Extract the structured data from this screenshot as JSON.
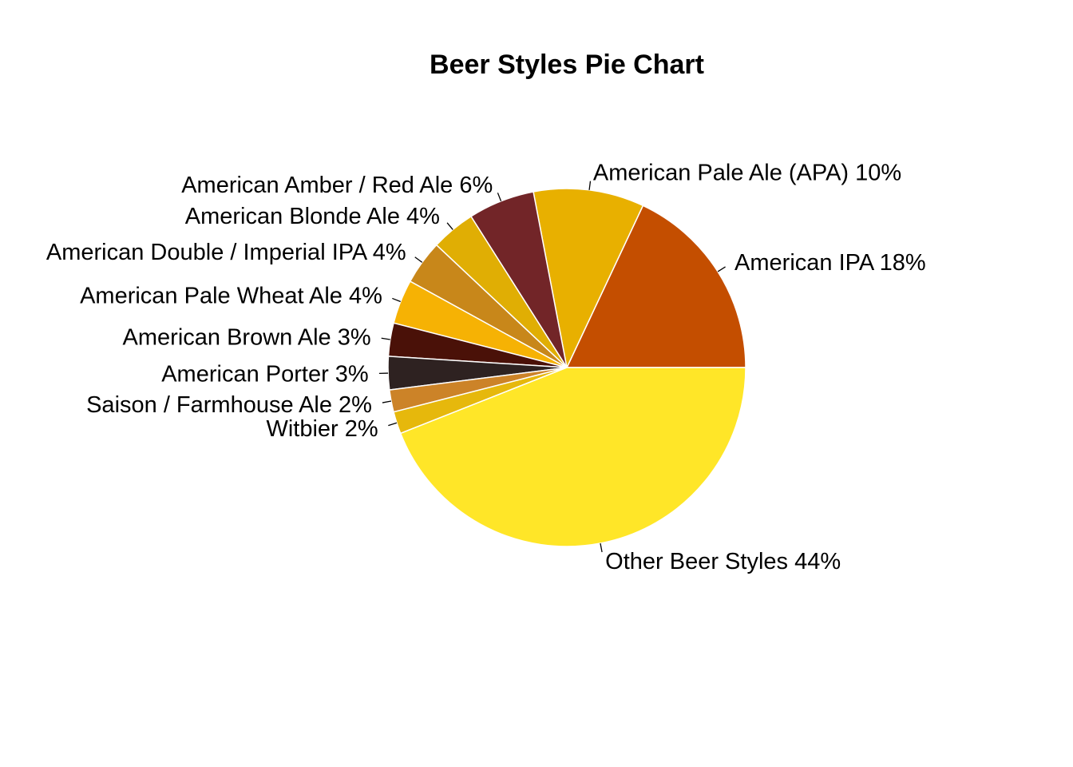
{
  "chart_data": {
    "type": "pie",
    "title": "Beer Styles Pie Chart",
    "slices": [
      {
        "label": "American IPA 18%",
        "value": 18,
        "color": "#C44E00"
      },
      {
        "label": "American Pale Ale (APA) 10%",
        "value": 10,
        "color": "#E8B000"
      },
      {
        "label": "American Amber / Red Ale 6%",
        "value": 6,
        "color": "#722528"
      },
      {
        "label": "American Blonde Ale 4%",
        "value": 4,
        "color": "#E0AE04"
      },
      {
        "label": "American Double / Imperial IPA 4%",
        "value": 4,
        "color": "#C8871A"
      },
      {
        "label": "American Pale Wheat Ale 4%",
        "value": 4,
        "color": "#F6B204"
      },
      {
        "label": "American Brown Ale 3%",
        "value": 3,
        "color": "#4A1108"
      },
      {
        "label": "American Porter 3%",
        "value": 3,
        "color": "#2E2221"
      },
      {
        "label": "Saison / Farmhouse Ale 2%",
        "value": 2,
        "color": "#CC8328"
      },
      {
        "label": "Witbier 2%",
        "value": 2,
        "color": "#E6B80C"
      },
      {
        "label": "Other Beer Styles 44%",
        "value": 44,
        "color": "#FFE628"
      }
    ],
    "start": "3 o'clock",
    "direction": "counterclockwise",
    "legend": "none"
  }
}
